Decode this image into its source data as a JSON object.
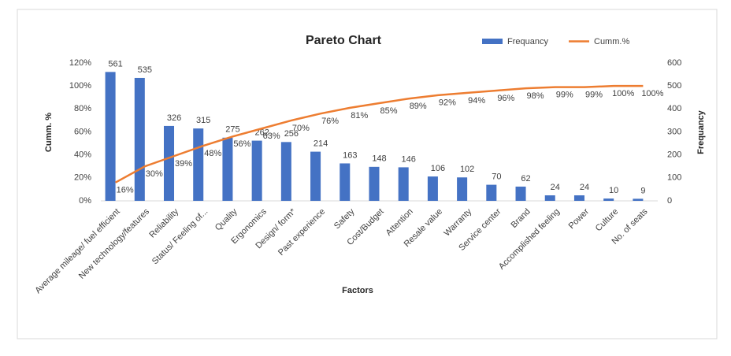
{
  "chart_data": {
    "type": "pareto",
    "title": "Pareto  Chart",
    "x_label": "Factors",
    "y_label": "Cumm. %",
    "y2_label": "Frequancy",
    "categories": [
      "Average mileage/ fuel efficient",
      "New technology/features",
      "Reliability",
      "Status/ Feeling of...",
      "Quality",
      "Ergonomics",
      "Design/ form*",
      "Past experience",
      "Safety",
      "Cost/Budget",
      "Attention",
      "Resale value",
      "Warranty",
      "Service center",
      "Brand",
      "Accomplished feeling",
      "Power",
      "Culture",
      "No. of seats"
    ],
    "series": [
      {
        "name": "Frequancy",
        "type": "bar",
        "axis": "y2",
        "color": "#4472c4",
        "values": [
          561,
          535,
          326,
          315,
          275,
          262,
          256,
          214,
          163,
          148,
          146,
          106,
          102,
          70,
          62,
          24,
          24,
          10,
          9
        ]
      },
      {
        "name": "Cumm.%",
        "type": "line",
        "color": "#ed7d31",
        "values": [
          16,
          30,
          39,
          48,
          56,
          63,
          70,
          76,
          81,
          85,
          89,
          92,
          94,
          96,
          98,
          99,
          99,
          100,
          100
        ],
        "value_labels": [
          "16%",
          "30%",
          "39%",
          "48%",
          "56%",
          "63%",
          "70%",
          "76%",
          "81%",
          "85%",
          "89%",
          "92%",
          "94%",
          "96%",
          "98%",
          "99%",
          "99%",
          "100%",
          "100%"
        ]
      }
    ],
    "ylim": [
      0,
      120
    ],
    "yticks": [
      {
        "value": 0,
        "label": "0%"
      },
      {
        "value": 20,
        "label": "20%"
      },
      {
        "value": 40,
        "label": "40%"
      },
      {
        "value": 60,
        "label": "60%"
      },
      {
        "value": 80,
        "label": "80%"
      },
      {
        "value": 100,
        "label": "100%"
      },
      {
        "value": 120,
        "label": "120%"
      }
    ],
    "y2lim": [
      0,
      600
    ],
    "y2ticks": [
      0,
      100,
      200,
      300,
      400,
      500,
      600
    ],
    "legend": "top-right",
    "grid": false
  }
}
